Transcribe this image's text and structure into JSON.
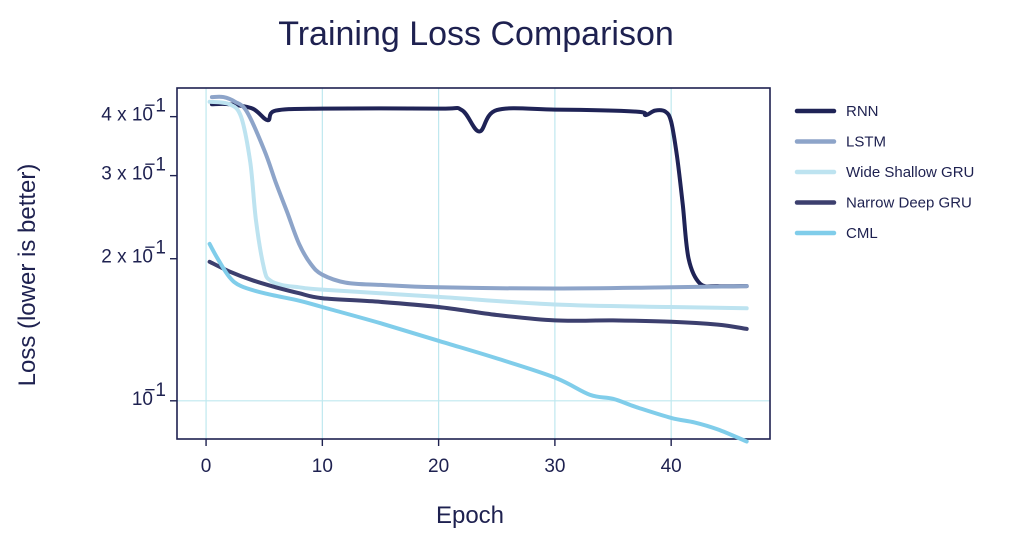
{
  "chart_data": {
    "type": "line",
    "title": "Training Loss Comparison",
    "xlabel": "Epoch",
    "ylabel": "Loss (lower is better)",
    "yscale": "log",
    "xlim": [
      -2.5,
      48.5
    ],
    "ylim": [
      0.083,
      0.46
    ],
    "xticks": [
      0,
      10,
      20,
      30,
      40
    ],
    "xtick_labels": [
      "0",
      "10",
      "20",
      "30",
      "40"
    ],
    "yticks": [
      0.1,
      0.2,
      0.3,
      0.4
    ],
    "ytick_labels": [
      {
        "base": "10",
        "exp": "−1"
      },
      {
        "base": "2 x 10",
        "exp": "−1"
      },
      {
        "base": "3 x 10",
        "exp": "−1"
      },
      {
        "base": "4 x 10",
        "exp": "−1"
      }
    ],
    "grid": {
      "x": true,
      "y": "minor-only"
    },
    "legend_position": "right",
    "series": [
      {
        "name": "RNN",
        "color": "#1f2356",
        "x": [
          0.5,
          2,
          4,
          5.3,
          6,
          10,
          20,
          22,
          23.5,
          25,
          30,
          37,
          37.8,
          38.6,
          39.5,
          40,
          40.5,
          41,
          41.5,
          42.5,
          44,
          46.5
        ],
        "y": [
          0.425,
          0.425,
          0.416,
          0.393,
          0.412,
          0.416,
          0.416,
          0.413,
          0.372,
          0.413,
          0.414,
          0.41,
          0.403,
          0.412,
          0.41,
          0.39,
          0.33,
          0.26,
          0.2,
          0.177,
          0.175,
          0.175
        ]
      },
      {
        "name": "LSTM",
        "color": "#8da4c9",
        "x": [
          0.5,
          1.5,
          2.5,
          3.5,
          5,
          6,
          7,
          8,
          9,
          10,
          12,
          15,
          20,
          30,
          40,
          46.5
        ],
        "y": [
          0.44,
          0.44,
          0.43,
          0.41,
          0.34,
          0.29,
          0.25,
          0.215,
          0.195,
          0.185,
          0.178,
          0.176,
          0.174,
          0.173,
          0.174,
          0.175
        ]
      },
      {
        "name": "Wide Shallow GRU",
        "color": "#bde3f0",
        "x": [
          0.3,
          2,
          3,
          3.8,
          4.3,
          5,
          5.5,
          6.5,
          8,
          10,
          20,
          30,
          40,
          46.5
        ],
        "y": [
          0.43,
          0.425,
          0.4,
          0.32,
          0.24,
          0.19,
          0.18,
          0.176,
          0.174,
          0.172,
          0.166,
          0.16,
          0.158,
          0.157
        ]
      },
      {
        "name": "Narrow Deep GRU",
        "color": "#3c3f6e",
        "x": [
          0.3,
          2,
          4,
          6,
          8,
          10,
          15,
          20,
          25,
          30,
          35,
          40,
          44,
          46.5
        ],
        "y": [
          0.197,
          0.188,
          0.18,
          0.174,
          0.169,
          0.165,
          0.162,
          0.158,
          0.152,
          0.148,
          0.148,
          0.147,
          0.145,
          0.142
        ]
      },
      {
        "name": "CML",
        "color": "#80cdea",
        "x": [
          0.3,
          1,
          2,
          3,
          5,
          8,
          10,
          15,
          20,
          25,
          30,
          33,
          35,
          37,
          40,
          42,
          44,
          46.5
        ],
        "y": [
          0.215,
          0.2,
          0.183,
          0.175,
          0.169,
          0.163,
          0.158,
          0.146,
          0.134,
          0.123,
          0.112,
          0.103,
          0.101,
          0.097,
          0.092,
          0.09,
          0.087,
          0.082
        ]
      }
    ]
  }
}
